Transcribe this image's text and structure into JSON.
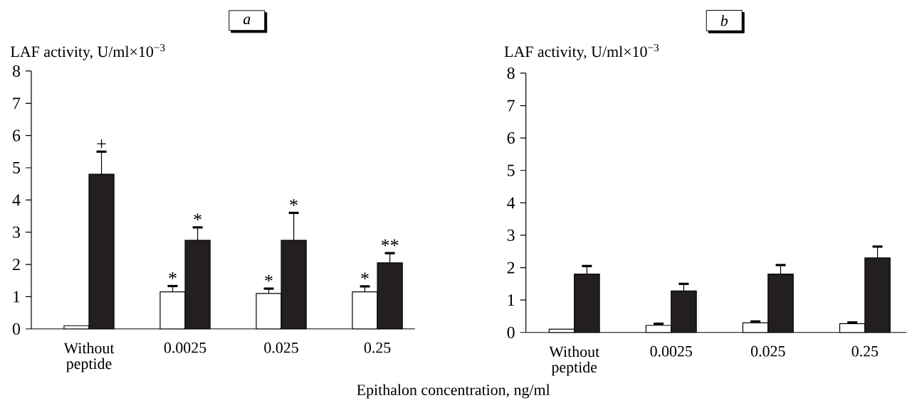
{
  "chart_data": [
    {
      "type": "bar",
      "title": "*a*",
      "ylabel": "LAF activity, U/ml×10$^{−3}$",
      "xlabel": "Epithalon concentration, ng/ml",
      "categories": [
        "Without peptide",
        "0.0025",
        "0.025",
        "0.25"
      ],
      "series": [
        {
          "color": "#ffffff",
          "values": [
            0.1,
            1.15,
            1.1,
            1.15
          ],
          "errors": [
            null,
            [
              1.15,
              1.33
            ],
            [
              1.1,
              1.25
            ],
            [
              1.15,
              1.32
            ]
          ]
        },
        {
          "color": "#231f20",
          "values": [
            4.8,
            2.75,
            2.75,
            2.05
          ],
          "errors": [
            [
              4.8,
              5.5
            ],
            [
              2.75,
              3.15
            ],
            [
              2.75,
              3.6
            ],
            [
              2.05,
              2.35
            ]
          ]
        }
      ],
      "ylim": [
        0,
        8
      ],
      "yticks": [
        0,
        1,
        2,
        3,
        4,
        5,
        6,
        7,
        8
      ],
      "annotations": [
        {
          "text": "+",
          "x": "Without peptide",
          "y": 4.8
        },
        {
          "text": "*",
          "x": "0.0025",
          "y": 1.15
        },
        {
          "text": "*",
          "x": "0.0025",
          "y": 2.75
        },
        {
          "text": "*",
          "x": "0.025",
          "y": 1.1
        },
        {
          "text": "*",
          "x": "0.025",
          "y": 2.75
        },
        {
          "text": "*",
          "x": "0.25",
          "y": 1.15
        },
        {
          "text": "**",
          "x": "0.25",
          "y": 2.05
        }
      ]
    },
    {
      "type": "bar",
      "title": "*b*",
      "ylabel": "LAF activity, U/ml×10$^{−3}$",
      "categories": [
        "Without peptide",
        "0.0025",
        "0.025",
        "0.25"
      ],
      "series": [
        {
          "color": "#ffffff",
          "values": [
            0.1,
            0.22,
            0.3,
            0.27
          ],
          "errors": [
            null,
            [
              0.22,
              0.27
            ],
            [
              0.3,
              0.34
            ],
            [
              0.27,
              0.31
            ]
          ]
        },
        {
          "color": "#231f20",
          "values": [
            1.8,
            1.28,
            1.8,
            2.3
          ],
          "errors": [
            [
              1.8,
              2.05
            ],
            [
              1.28,
              1.5
            ],
            [
              1.8,
              2.08
            ],
            [
              2.3,
              2.65
            ]
          ]
        }
      ],
      "ylim": [
        0,
        8
      ],
      "yticks": [
        0,
        1,
        2,
        3,
        4,
        5,
        6,
        7,
        8
      ]
    }
  ]
}
